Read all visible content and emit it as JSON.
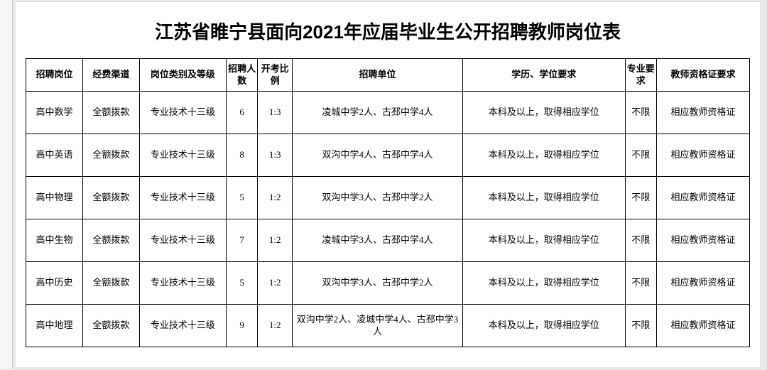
{
  "title": "江苏省睢宁县面向2021年应届毕业生公开招聘教师岗位表",
  "headers": {
    "position": "招聘岗位",
    "funding": "经费渠道",
    "category": "岗位类别及等级",
    "count": "招聘人数",
    "ratio": "开考比例",
    "unit": "招聘单位",
    "education": "学历、学位要求",
    "major": "专业要求",
    "cert": "教师资格证要求"
  },
  "common": {
    "funding": "全额拨款",
    "category": "专业技术十三级",
    "education": "本科及以上，取得相应学位",
    "major": "不限",
    "cert": "相应教师资格证"
  },
  "rows": [
    {
      "position": "高中数学",
      "count": "6",
      "ratio": "1:3",
      "unit": "凌城中学2人、古邳中学4人"
    },
    {
      "position": "高中英语",
      "count": "8",
      "ratio": "1:3",
      "unit": "双沟中学4人、古邳中学4人"
    },
    {
      "position": "高中物理",
      "count": "5",
      "ratio": "1:2",
      "unit": "双沟中学3人、古邳中学2人"
    },
    {
      "position": "高中生物",
      "count": "7",
      "ratio": "1:2",
      "unit": "凌城中学3人、古邳中学4人"
    },
    {
      "position": "高中历史",
      "count": "5",
      "ratio": "1:2",
      "unit": "双沟中学3人、古邳中学2人"
    },
    {
      "position": "高中地理",
      "count": "9",
      "ratio": "1:2",
      "unit": "双沟中学2人、凌城中学4人、古邳中学3人"
    }
  ]
}
